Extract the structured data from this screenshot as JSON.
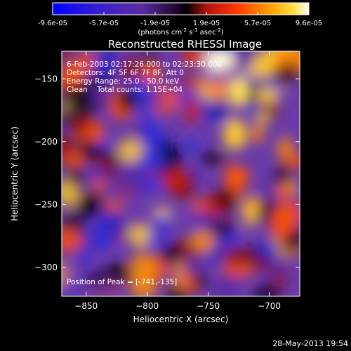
{
  "chart_data": {
    "type": "heatmap",
    "title": "Reconstructed RHESSI Image",
    "xlabel": "Heliocentric X (arcsec)",
    "ylabel": "Heliocentric Y (arcsec)",
    "xlim": [
      -870,
      -675
    ],
    "ylim": [
      -323,
      -128
    ],
    "xticks": [
      -850,
      -800,
      -750,
      -700
    ],
    "yticks": [
      -150,
      -200,
      -250,
      -300
    ],
    "colorbar": {
      "min": -9.6e-05,
      "max": 9.6e-05,
      "ticks": [
        "-9.6e-05",
        "-5.7e-05",
        "-1.9e-05",
        "1.9e-05",
        "5.7e-05",
        "9.6e-05"
      ],
      "units": "(photons cm",
      "units_exp1": "-2",
      "units_mid": " s",
      "units_exp2": "-1",
      "units_end": " asec",
      "units_exp3": "-2",
      "units_close": ")"
    },
    "annotations": {
      "time_range": "6-Feb-2003 02:17:26.000 to 02:23:30.000",
      "detectors": "Detectors: 4F 5F 6F 7F 8F, Att 0",
      "energy_range": "Energy Range: 25.0 - 50.0 keV",
      "method_counts": "Clean    Total counts: 1.15E+04",
      "peak_position": "Position of Peak = [-741,-135]"
    },
    "peak": [
      -741,
      -135
    ]
  },
  "footer": {
    "date": "28-May-2013 19:54"
  }
}
